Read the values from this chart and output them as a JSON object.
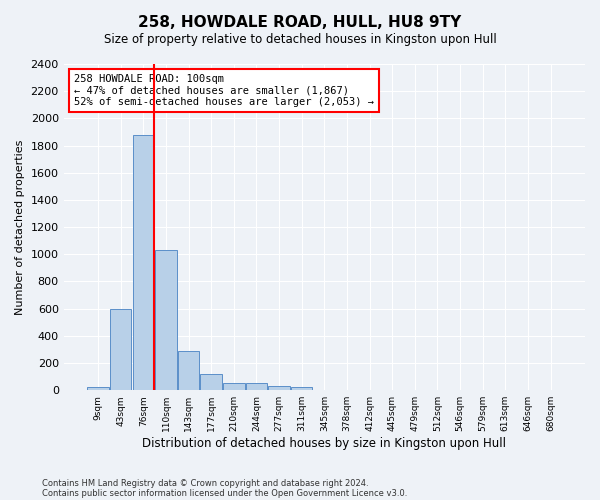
{
  "title": "258, HOWDALE ROAD, HULL, HU8 9TY",
  "subtitle": "Size of property relative to detached houses in Kingston upon Hull",
  "xlabel": "Distribution of detached houses by size in Kingston upon Hull",
  "ylabel": "Number of detached properties",
  "footnote1": "Contains HM Land Registry data © Crown copyright and database right 2024.",
  "footnote2": "Contains public sector information licensed under the Open Government Licence v3.0.",
  "annotation_line1": "258 HOWDALE ROAD: 100sqm",
  "annotation_line2": "← 47% of detached houses are smaller (1,867)",
  "annotation_line3": "52% of semi-detached houses are larger (2,053) →",
  "bar_color": "#b8d0e8",
  "bar_edge_color": "#5b8fc9",
  "bar_values": [
    20,
    600,
    1880,
    1030,
    285,
    120,
    50,
    50,
    30,
    20,
    0,
    0,
    0,
    0,
    0,
    0,
    0,
    0,
    0,
    0,
    0
  ],
  "bin_labels": [
    "9sqm",
    "43sqm",
    "76sqm",
    "110sqm",
    "143sqm",
    "177sqm",
    "210sqm",
    "244sqm",
    "277sqm",
    "311sqm",
    "345sqm",
    "378sqm",
    "412sqm",
    "445sqm",
    "479sqm",
    "512sqm",
    "546sqm",
    "579sqm",
    "613sqm",
    "646sqm",
    "680sqm"
  ],
  "ylim": [
    0,
    2400
  ],
  "yticks": [
    0,
    200,
    400,
    600,
    800,
    1000,
    1200,
    1400,
    1600,
    1800,
    2000,
    2200,
    2400
  ],
  "vline_bin_index": 2,
  "background_color": "#eef2f7",
  "grid_color": "#ffffff"
}
